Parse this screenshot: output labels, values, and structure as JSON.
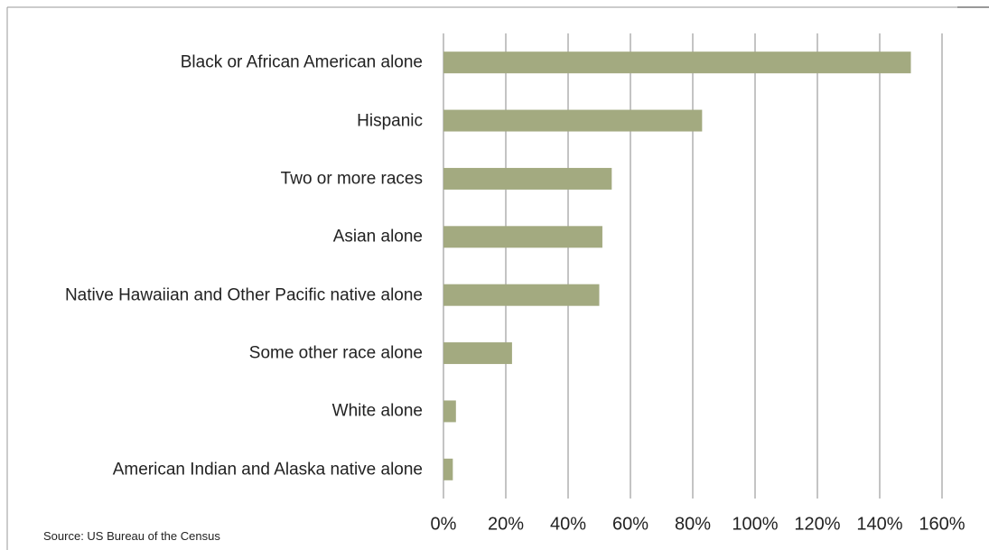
{
  "chart_data": {
    "type": "bar",
    "orientation": "horizontal",
    "categories": [
      "Black or African American alone",
      "Hispanic",
      "Two or more races",
      "Asian alone",
      "Native Hawaiian and Other Pacific native alone",
      "Some other race alone",
      "White alone",
      "American Indian and Alaska native alone"
    ],
    "values": [
      150,
      83,
      54,
      51,
      50,
      22,
      4,
      3
    ],
    "color": "#a3aa80",
    "xlim": [
      0,
      160
    ],
    "xticks": [
      {
        "value": 0,
        "label": "0%"
      },
      {
        "value": 20,
        "label": "20%"
      },
      {
        "value": 40,
        "label": "40%"
      },
      {
        "value": 60,
        "label": "60%"
      },
      {
        "value": 80,
        "label": "80%"
      },
      {
        "value": 100,
        "label": "100%"
      },
      {
        "value": 120,
        "label": "120%"
      },
      {
        "value": 140,
        "label": "140%"
      },
      {
        "value": 160,
        "label": "160%"
      }
    ],
    "grid": true,
    "source": "Source: US Bureau of the Census"
  }
}
